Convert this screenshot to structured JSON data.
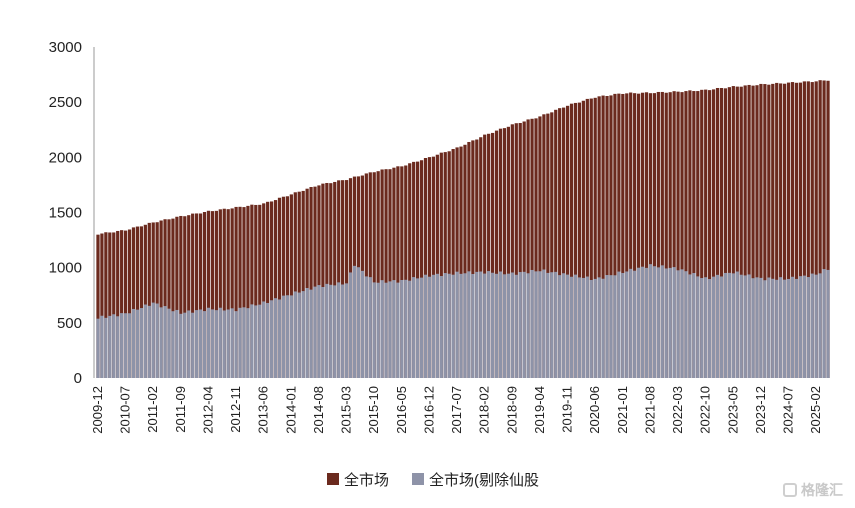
{
  "chart_data": {
    "type": "bar",
    "categories": [
      "2009-12",
      "2010-07",
      "2011-02",
      "2011-09",
      "2012-04",
      "2012-11",
      "2013-06",
      "2014-01",
      "2014-08",
      "2015-03",
      "2015-10",
      "2016-05",
      "2016-12",
      "2017-07",
      "2018-02",
      "2018-09",
      "2019-04",
      "2019-11",
      "2020-06",
      "2021-01",
      "2021-08",
      "2022-03",
      "2022-10",
      "2023-05",
      "2023-12",
      "2024-07",
      "2025-02"
    ],
    "x_start": "2009-12",
    "x_end": "2025-05",
    "ylim": [
      0,
      3000
    ],
    "yticks": [
      0,
      500,
      1000,
      1500,
      2000,
      2500,
      3000
    ],
    "legend": "bottom-center",
    "grid": false,
    "series": [
      {
        "name": "全市场",
        "color": "#6B2A1E",
        "anchors": [
          {
            "x": "2009-12",
            "y": 1305
          },
          {
            "x": "2010-07",
            "y": 1340
          },
          {
            "x": "2011-02",
            "y": 1410
          },
          {
            "x": "2011-09",
            "y": 1465
          },
          {
            "x": "2012-04",
            "y": 1510
          },
          {
            "x": "2012-11",
            "y": 1545
          },
          {
            "x": "2013-06",
            "y": 1580
          },
          {
            "x": "2014-01",
            "y": 1665
          },
          {
            "x": "2014-08",
            "y": 1750
          },
          {
            "x": "2015-03",
            "y": 1800
          },
          {
            "x": "2015-10",
            "y": 1870
          },
          {
            "x": "2016-05",
            "y": 1920
          },
          {
            "x": "2016-12",
            "y": 2000
          },
          {
            "x": "2017-07",
            "y": 2085
          },
          {
            "x": "2018-02",
            "y": 2200
          },
          {
            "x": "2018-09",
            "y": 2295
          },
          {
            "x": "2019-04",
            "y": 2370
          },
          {
            "x": "2019-11",
            "y": 2470
          },
          {
            "x": "2020-06",
            "y": 2545
          },
          {
            "x": "2021-01",
            "y": 2580
          },
          {
            "x": "2021-08",
            "y": 2585
          },
          {
            "x": "2022-03",
            "y": 2595
          },
          {
            "x": "2022-10",
            "y": 2610
          },
          {
            "x": "2023-05",
            "y": 2640
          },
          {
            "x": "2023-12",
            "y": 2660
          },
          {
            "x": "2024-07",
            "y": 2675
          },
          {
            "x": "2025-02",
            "y": 2690
          },
          {
            "x": "2025-05",
            "y": 2700
          }
        ]
      },
      {
        "name": "全市场(剔除仙股",
        "color": "#8E93A8",
        "anchors": [
          {
            "x": "2009-12",
            "y": 545
          },
          {
            "x": "2010-07",
            "y": 585
          },
          {
            "x": "2011-02",
            "y": 680
          },
          {
            "x": "2011-09",
            "y": 590
          },
          {
            "x": "2012-04",
            "y": 625
          },
          {
            "x": "2012-11",
            "y": 620
          },
          {
            "x": "2013-06",
            "y": 680
          },
          {
            "x": "2014-01",
            "y": 760
          },
          {
            "x": "2014-08",
            "y": 835
          },
          {
            "x": "2015-03",
            "y": 860
          },
          {
            "x": "2015-05",
            "y": 1030
          },
          {
            "x": "2015-10",
            "y": 870
          },
          {
            "x": "2016-05",
            "y": 880
          },
          {
            "x": "2016-12",
            "y": 930
          },
          {
            "x": "2017-07",
            "y": 950
          },
          {
            "x": "2018-02",
            "y": 960
          },
          {
            "x": "2018-09",
            "y": 945
          },
          {
            "x": "2019-04",
            "y": 975
          },
          {
            "x": "2019-11",
            "y": 935
          },
          {
            "x": "2020-06",
            "y": 895
          },
          {
            "x": "2021-01",
            "y": 960
          },
          {
            "x": "2021-08",
            "y": 1020
          },
          {
            "x": "2022-03",
            "y": 990
          },
          {
            "x": "2022-10",
            "y": 900
          },
          {
            "x": "2023-05",
            "y": 960
          },
          {
            "x": "2023-12",
            "y": 900
          },
          {
            "x": "2024-07",
            "y": 900
          },
          {
            "x": "2025-02",
            "y": 940
          },
          {
            "x": "2025-05",
            "y": 990
          }
        ]
      }
    ]
  },
  "watermark": {
    "text": "格隆汇"
  }
}
